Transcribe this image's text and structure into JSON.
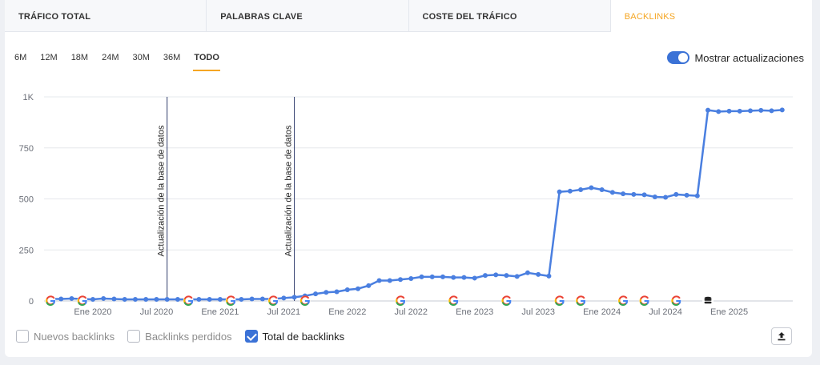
{
  "tabs": [
    {
      "label": "TRÁFICO TOTAL",
      "active": false
    },
    {
      "label": "PALABRAS CLAVE",
      "active": false
    },
    {
      "label": "COSTE DEL TRÁFICO",
      "active": false
    },
    {
      "label": "BACKLINKS",
      "active": true
    }
  ],
  "periods": [
    {
      "label": "6M",
      "active": false
    },
    {
      "label": "12M",
      "active": false
    },
    {
      "label": "18M",
      "active": false
    },
    {
      "label": "24M",
      "active": false
    },
    {
      "label": "30M",
      "active": false
    },
    {
      "label": "36M",
      "active": false
    },
    {
      "label": "TODO",
      "active": true
    }
  ],
  "toggle": {
    "label": "Mostrar actualizaciones",
    "on": true
  },
  "legend": [
    {
      "label": "Nuevos backlinks",
      "checked": false
    },
    {
      "label": "Backlinks perdidos",
      "checked": false
    },
    {
      "label": "Total de backlinks",
      "checked": true
    }
  ],
  "colors": {
    "line": "#4a7fe0",
    "accent": "#f5a623",
    "toggle": "#3b72d6",
    "grid": "#e6e8ec"
  },
  "icons": {
    "export": "export-upload-icon",
    "google_update": "google-icon",
    "database_update": "database-icon"
  },
  "chart_data": {
    "type": "line",
    "ylim": [
      0,
      1000
    ],
    "ytick_values": [
      0,
      250,
      500,
      750,
      1000
    ],
    "ytick_labels": [
      "0",
      "250",
      "500",
      "750",
      "1K"
    ],
    "xlim": [
      "2019-09",
      "2025-07"
    ],
    "xticks": [
      {
        "date": "2020-01",
        "label": "Ene 2020"
      },
      {
        "date": "2020-07",
        "label": "Jul 2020"
      },
      {
        "date": "2021-01",
        "label": "Ene 2021"
      },
      {
        "date": "2021-07",
        "label": "Jul 2021"
      },
      {
        "date": "2022-01",
        "label": "Ene 2022"
      },
      {
        "date": "2022-07",
        "label": "Jul 2022"
      },
      {
        "date": "2023-01",
        "label": "Ene 2023"
      },
      {
        "date": "2023-07",
        "label": "Jul 2023"
      },
      {
        "date": "2024-01",
        "label": "Ene 2024"
      },
      {
        "date": "2024-07",
        "label": "Jul 2024"
      },
      {
        "date": "2025-01",
        "label": "Ene 2025"
      }
    ],
    "annotations": [
      {
        "date": "2020-08",
        "label": "Actualización de la base de datos"
      },
      {
        "date": "2021-08",
        "label": "Actualización de la base de datos"
      }
    ],
    "update_markers": [
      {
        "date": "2019-09",
        "kind": "google"
      },
      {
        "date": "2019-12",
        "kind": "google"
      },
      {
        "date": "2020-10",
        "kind": "google"
      },
      {
        "date": "2021-02",
        "kind": "google"
      },
      {
        "date": "2021-06",
        "kind": "google"
      },
      {
        "date": "2021-09",
        "kind": "google"
      },
      {
        "date": "2022-06",
        "kind": "google"
      },
      {
        "date": "2022-11",
        "kind": "google"
      },
      {
        "date": "2023-04",
        "kind": "google"
      },
      {
        "date": "2023-09",
        "kind": "google"
      },
      {
        "date": "2023-11",
        "kind": "google"
      },
      {
        "date": "2024-03",
        "kind": "google"
      },
      {
        "date": "2024-05",
        "kind": "google"
      },
      {
        "date": "2024-08",
        "kind": "google"
      },
      {
        "date": "2024-11",
        "kind": "database"
      }
    ],
    "series": [
      {
        "x": [
          "2019-09",
          "2019-10",
          "2019-11",
          "2019-12",
          "2020-01",
          "2020-02",
          "2020-03",
          "2020-04",
          "2020-05",
          "2020-06",
          "2020-07",
          "2020-08",
          "2020-09",
          "2020-10",
          "2020-11",
          "2020-12",
          "2021-01",
          "2021-02",
          "2021-03",
          "2021-04",
          "2021-05",
          "2021-06",
          "2021-07",
          "2021-08",
          "2021-09",
          "2021-10",
          "2021-11",
          "2021-12",
          "2022-01",
          "2022-02",
          "2022-03",
          "2022-04",
          "2022-05",
          "2022-06",
          "2022-07",
          "2022-08",
          "2022-09",
          "2022-10",
          "2022-11",
          "2022-12",
          "2023-01",
          "2023-02",
          "2023-03",
          "2023-04",
          "2023-05",
          "2023-06",
          "2023-07",
          "2023-08",
          "2023-09",
          "2023-10",
          "2023-11",
          "2023-12",
          "2024-01",
          "2024-02",
          "2024-03",
          "2024-04",
          "2024-05",
          "2024-06",
          "2024-07",
          "2024-08",
          "2024-09",
          "2024-10",
          "2024-11",
          "2024-12",
          "2025-01",
          "2025-02",
          "2025-03",
          "2025-04",
          "2025-05",
          "2025-06"
        ],
        "values": [
          10,
          10,
          12,
          10,
          8,
          12,
          10,
          8,
          8,
          8,
          8,
          8,
          8,
          8,
          8,
          8,
          8,
          8,
          8,
          10,
          10,
          10,
          14,
          18,
          25,
          35,
          42,
          45,
          55,
          60,
          75,
          100,
          100,
          105,
          110,
          118,
          118,
          118,
          115,
          115,
          112,
          125,
          128,
          125,
          120,
          138,
          130,
          122,
          535,
          538,
          545,
          555,
          545,
          532,
          525,
          522,
          520,
          510,
          508,
          522,
          518,
          515,
          935,
          928,
          930,
          930,
          932,
          934,
          932,
          936
        ]
      }
    ]
  }
}
